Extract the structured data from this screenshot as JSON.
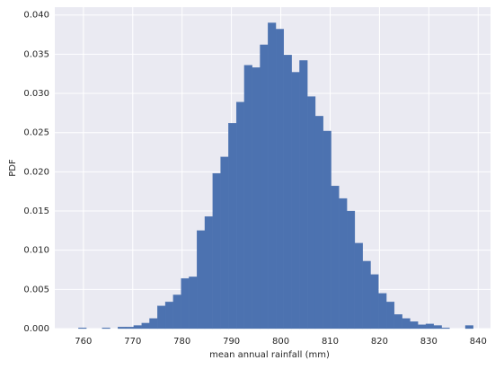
{
  "chart_data": {
    "type": "histogram",
    "xlabel": "mean annual rainfall (mm)",
    "ylabel": "PDF",
    "bins": [
      759.0,
      760.6,
      762.2,
      763.8,
      765.4,
      767.0,
      768.6,
      770.2,
      771.8,
      773.4,
      775.0,
      776.6,
      778.2,
      779.8,
      781.4,
      783.0,
      784.6,
      786.2,
      787.8,
      789.4,
      791.0,
      792.6,
      794.2,
      795.8,
      797.4,
      799.0,
      800.6,
      802.2,
      803.8,
      805.4,
      807.0,
      808.6,
      810.2,
      811.8,
      813.4,
      815.0,
      816.6,
      818.2,
      819.8,
      821.4,
      823.0,
      824.6,
      826.2,
      827.8,
      829.4,
      831.0,
      832.6,
      834.2,
      835.8,
      837.4,
      839.0
    ],
    "values": [
      0.0001,
      0,
      0,
      0.0001,
      0,
      0.0002,
      0.0002,
      0.0004,
      0.0007,
      0.0013,
      0.0029,
      0.0034,
      0.0043,
      0.0064,
      0.0066,
      0.0125,
      0.0143,
      0.0198,
      0.0219,
      0.0262,
      0.0289,
      0.0336,
      0.0333,
      0.0362,
      0.039,
      0.0382,
      0.0349,
      0.0327,
      0.0342,
      0.0296,
      0.0271,
      0.0252,
      0.0182,
      0.0166,
      0.015,
      0.0109,
      0.0086,
      0.0069,
      0.0045,
      0.0034,
      0.0018,
      0.0013,
      0.0009,
      0.0005,
      0.0006,
      0.0004,
      0.0001,
      0,
      0,
      0.0004
    ],
    "color": "#4c72b0",
    "background": "#eaeaf2",
    "grid": true,
    "xlim": [
      754.2,
      842.5
    ],
    "ylim": [
      0,
      0.041
    ],
    "xticks": [
      760,
      770,
      780,
      790,
      800,
      810,
      820,
      830,
      840
    ],
    "yticks": [
      {
        "value": 0,
        "label": "0.000"
      },
      {
        "value": 0.005,
        "label": "0.005"
      },
      {
        "value": 0.01,
        "label": "0.010"
      },
      {
        "value": 0.015,
        "label": "0.015"
      },
      {
        "value": 0.02,
        "label": "0.020"
      },
      {
        "value": 0.025,
        "label": "0.025"
      },
      {
        "value": 0.03,
        "label": "0.030"
      },
      {
        "value": 0.035,
        "label": "0.035"
      },
      {
        "value": 0.04,
        "label": "0.040"
      }
    ]
  }
}
